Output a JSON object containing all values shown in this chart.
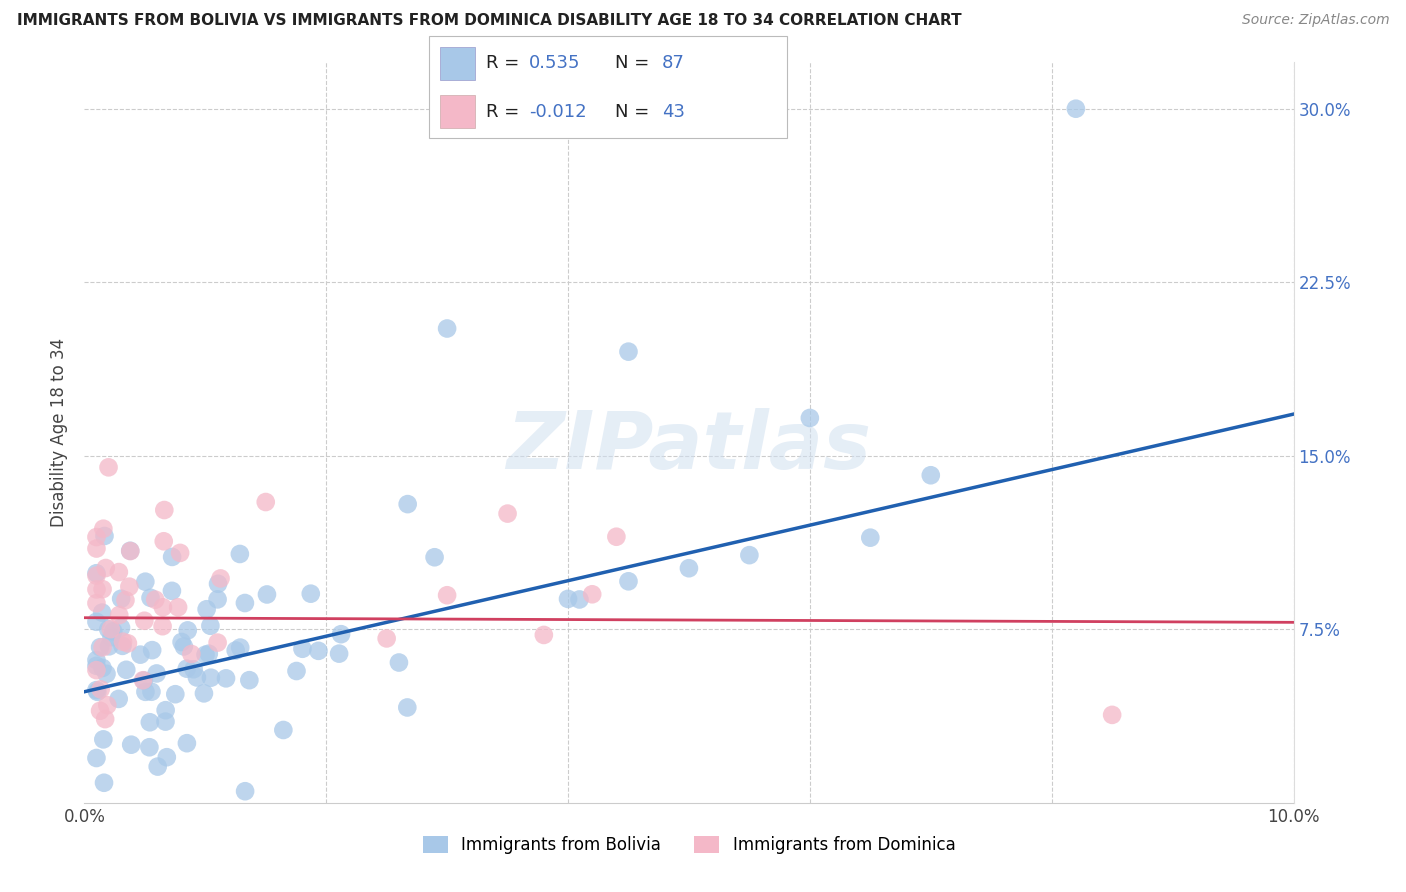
{
  "title": "IMMIGRANTS FROM BOLIVIA VS IMMIGRANTS FROM DOMINICA DISABILITY AGE 18 TO 34 CORRELATION CHART",
  "source": "Source: ZipAtlas.com",
  "ylabel": "Disability Age 18 to 34",
  "xlim": [
    0.0,
    0.1
  ],
  "ylim": [
    0.0,
    0.32
  ],
  "bolivia_R": 0.535,
  "bolivia_N": 87,
  "dominica_R": -0.012,
  "dominica_N": 43,
  "bolivia_color": "#a8c8e8",
  "dominica_color": "#f4b8c8",
  "bolivia_line_color": "#2060b0",
  "dominica_line_color": "#d04060",
  "bolivia_line_x0": 0.0,
  "bolivia_line_y0": 0.048,
  "bolivia_line_x1": 0.1,
  "bolivia_line_y1": 0.168,
  "dominica_line_x0": 0.0,
  "dominica_line_y0": 0.08,
  "dominica_line_x1": 0.1,
  "dominica_line_y1": 0.078,
  "watermark_text": "ZIPatlas",
  "legend_label1": "R =  0.535   N = 87",
  "legend_label2": "R = -0.012   N = 43",
  "bottom_legend1": "Immigrants from Bolivia",
  "bottom_legend2": "Immigrants from Dominica"
}
